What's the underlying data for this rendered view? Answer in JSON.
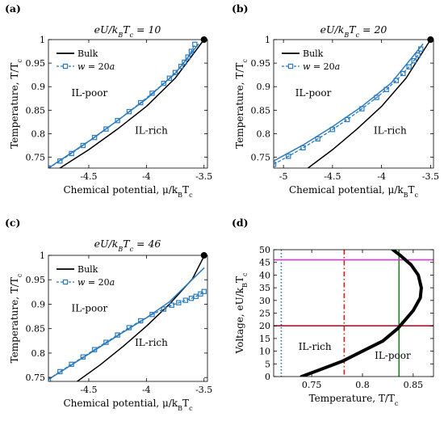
{
  "chart_data": [
    {
      "type": "line",
      "panel_label": "(a)",
      "title": "eU/k_BT_c = 10",
      "xlabel": "Chemical potential, μ/k_BT_c",
      "ylabel": "Temperature, T/T_c",
      "xlim": [
        -4.85,
        -3.47
      ],
      "ylim": [
        0.727,
        1.0
      ],
      "xticks": [
        -4.5,
        -4,
        -3.5
      ],
      "xtick_labels": [
        "-4.5",
        "-4",
        "-3.5"
      ],
      "yticks": [
        0.75,
        0.8,
        0.85,
        0.9,
        0.95,
        1.0
      ],
      "ytick_labels": [
        "0.75",
        "0.8",
        "0.85",
        "0.9",
        "0.95",
        "1"
      ],
      "legend": {
        "position": "top-left",
        "entries": [
          "Bulk",
          "w = 20a"
        ]
      },
      "regions": [
        {
          "label": "IL-poor",
          "x": -4.65,
          "y": 0.88
        },
        {
          "label": "IL-rich",
          "x": -4.1,
          "y": 0.8
        }
      ],
      "critical_point": [
        -3.5,
        1.0
      ],
      "series": [
        {
          "name": "Bulk",
          "color": "#000000",
          "style": "solid",
          "x": [
            -4.75,
            -4.5,
            -4.25,
            -4.0,
            -3.75,
            -3.5
          ],
          "y": [
            0.727,
            0.766,
            0.81,
            0.858,
            0.918,
            1.0
          ]
        },
        {
          "name": "w = 20a",
          "color": "#2b7bbf",
          "style": "dashed-square",
          "x": [
            -4.85,
            -4.75,
            -4.65,
            -4.55,
            -4.45,
            -4.35,
            -4.25,
            -4.15,
            -4.05,
            -3.95,
            -3.85,
            -3.8,
            -3.75,
            -3.7,
            -3.67,
            -3.64,
            -3.61,
            -3.58
          ],
          "y": [
            0.727,
            0.742,
            0.758,
            0.775,
            0.792,
            0.81,
            0.828,
            0.847,
            0.866,
            0.886,
            0.907,
            0.918,
            0.93,
            0.943,
            0.952,
            0.963,
            0.975,
            0.99
          ]
        },
        {
          "name": "",
          "color": "#2b7bbf",
          "style": "solid",
          "x": [
            -4.85,
            -4.5,
            -4.25,
            -4.0,
            -3.75,
            -3.55
          ],
          "y": [
            0.727,
            0.784,
            0.828,
            0.874,
            0.928,
            0.99
          ]
        }
      ]
    },
    {
      "type": "line",
      "panel_label": "(b)",
      "title": "eU/k_BT_c = 20",
      "xlabel": "Chemical potential, μ/k_BT_c",
      "ylabel": "Temperature, T/T_c",
      "xlim": [
        -5.1,
        -3.47
      ],
      "ylim": [
        0.727,
        1.0
      ],
      "xticks": [
        -5,
        -4.5,
        -4,
        -3.5
      ],
      "xtick_labels": [
        "-5",
        "-4.5",
        "-4",
        "-3.5"
      ],
      "yticks": [
        0.75,
        0.8,
        0.85,
        0.9,
        0.95,
        1.0
      ],
      "ytick_labels": [
        "0.75",
        "0.8",
        "0.85",
        "0.9",
        "0.95",
        "1"
      ],
      "legend": {
        "position": "top-left",
        "entries": [
          "Bulk",
          "w = 20a"
        ]
      },
      "regions": [
        {
          "label": "IL-poor",
          "x": -4.88,
          "y": 0.88
        },
        {
          "label": "IL-rich",
          "x": -4.08,
          "y": 0.8
        }
      ],
      "critical_point": [
        -3.5,
        1.0
      ],
      "series": [
        {
          "name": "Bulk",
          "color": "#000000",
          "style": "solid",
          "x": [
            -4.75,
            -4.5,
            -4.25,
            -4.0,
            -3.75,
            -3.5
          ],
          "y": [
            0.727,
            0.766,
            0.81,
            0.858,
            0.918,
            1.0
          ]
        },
        {
          "name": "w = 20a",
          "color": "#2b7bbf",
          "style": "dashed-square",
          "x": [
            -5.1,
            -4.95,
            -4.8,
            -4.65,
            -4.5,
            -4.35,
            -4.2,
            -4.05,
            -3.95,
            -3.85,
            -3.78,
            -3.72,
            -3.67,
            -3.63,
            -3.6
          ],
          "y": [
            0.735,
            0.752,
            0.77,
            0.789,
            0.809,
            0.83,
            0.853,
            0.877,
            0.894,
            0.913,
            0.928,
            0.942,
            0.955,
            0.967,
            0.98
          ]
        },
        {
          "name": "",
          "color": "#2b7bbf",
          "style": "solid",
          "x": [
            -5.1,
            -4.8,
            -4.5,
            -4.2,
            -3.9,
            -3.58
          ],
          "y": [
            0.742,
            0.776,
            0.815,
            0.858,
            0.908,
            0.99
          ]
        }
      ]
    },
    {
      "type": "line",
      "panel_label": "(c)",
      "title": "eU/k_BT_c = 46",
      "xlabel": "Chemical potential, μ/k_BT_c",
      "ylabel": "Temperature, T/T_c",
      "xlim": [
        -4.85,
        -3.47
      ],
      "ylim": [
        0.742,
        1.0
      ],
      "xticks": [
        -4.5,
        -4,
        -3.5
      ],
      "xtick_labels": [
        "-4.5",
        "-4",
        "-3.5"
      ],
      "yticks": [
        0.75,
        0.8,
        0.85,
        0.9,
        0.95,
        1.0
      ],
      "ytick_labels": [
        "0.75",
        "0.8",
        "0.85",
        "0.9",
        "0.95",
        "1"
      ],
      "legend": {
        "position": "top-left",
        "entries": [
          "Bulk",
          "w = 20a"
        ]
      },
      "regions": [
        {
          "label": "IL-poor",
          "x": -4.65,
          "y": 0.885
        },
        {
          "label": "IL-rich",
          "x": -4.1,
          "y": 0.815
        }
      ],
      "critical_point": [
        -3.5,
        1.0
      ],
      "series": [
        {
          "name": "Bulk",
          "color": "#000000",
          "style": "solid",
          "x": [
            -4.6,
            -4.4,
            -4.2,
            -4.0,
            -3.8,
            -3.6,
            -3.5
          ],
          "y": [
            0.742,
            0.776,
            0.814,
            0.855,
            0.9,
            0.952,
            0.998
          ]
        },
        {
          "name": "w = 20a",
          "color": "#2b7bbf",
          "style": "dashed-square",
          "x": [
            -4.85,
            -4.75,
            -4.65,
            -4.55,
            -4.45,
            -4.35,
            -4.25,
            -4.15,
            -4.05,
            -3.95,
            -3.85,
            -3.78,
            -3.72,
            -3.66,
            -3.61,
            -3.57,
            -3.53,
            -3.5
          ],
          "y": [
            0.746,
            0.762,
            0.777,
            0.792,
            0.807,
            0.822,
            0.837,
            0.852,
            0.866,
            0.879,
            0.89,
            0.898,
            0.903,
            0.908,
            0.912,
            0.916,
            0.921,
            0.926
          ]
        },
        {
          "name": "",
          "color": "#2b7bbf",
          "style": "solid",
          "x": [
            -4.85,
            -4.5,
            -4.2,
            -4.0,
            -3.8,
            -3.5
          ],
          "y": [
            0.746,
            0.798,
            0.843,
            0.872,
            0.905,
            0.974
          ]
        }
      ]
    },
    {
      "type": "line",
      "panel_label": "(d)",
      "title": "",
      "xlabel": "Temperature, T/T_c",
      "ylabel": "Voltage, eU/k_BT_c",
      "xlim": [
        0.7125,
        0.87
      ],
      "ylim": [
        0,
        50
      ],
      "xticks": [
        0.75,
        0.8,
        0.85
      ],
      "xtick_labels": [
        "0.75",
        "0.8",
        "0.85"
      ],
      "yticks": [
        0,
        5,
        10,
        15,
        20,
        25,
        30,
        35,
        40,
        45,
        50
      ],
      "ytick_labels": [
        "0",
        "5",
        "10",
        "15",
        "20",
        "25",
        "30",
        "35",
        "40",
        "45",
        "50"
      ],
      "regions": [
        {
          "label": "IL-rich",
          "x": 0.737,
          "y": 10.5
        },
        {
          "label": "IL-poor",
          "x": 0.812,
          "y": 7.0
        }
      ],
      "reference_lines": [
        {
          "orientation": "vertical",
          "value": 0.72,
          "color": "#1f6fb4",
          "style": "dotted"
        },
        {
          "orientation": "vertical",
          "value": 0.782,
          "color": "#e01a1a",
          "style": "dashdot"
        },
        {
          "orientation": "vertical",
          "value": 0.836,
          "color": "#1b8a1b",
          "style": "solid"
        },
        {
          "orientation": "horizontal",
          "value": 20,
          "color": "#a01c2c",
          "style": "solid"
        },
        {
          "orientation": "horizontal",
          "value": 46,
          "color": "#d63bd6",
          "style": "solid"
        }
      ],
      "series": [
        {
          "name": "",
          "color": "#000000",
          "style": "thick",
          "x": [
            0.74,
            0.76,
            0.78,
            0.8,
            0.82,
            0.835,
            0.85,
            0.857,
            0.858,
            0.855,
            0.848,
            0.838,
            0.83
          ],
          "y": [
            0,
            3,
            6,
            10,
            14,
            19,
            26,
            31,
            35,
            40,
            44,
            47.5,
            50
          ]
        }
      ]
    }
  ]
}
